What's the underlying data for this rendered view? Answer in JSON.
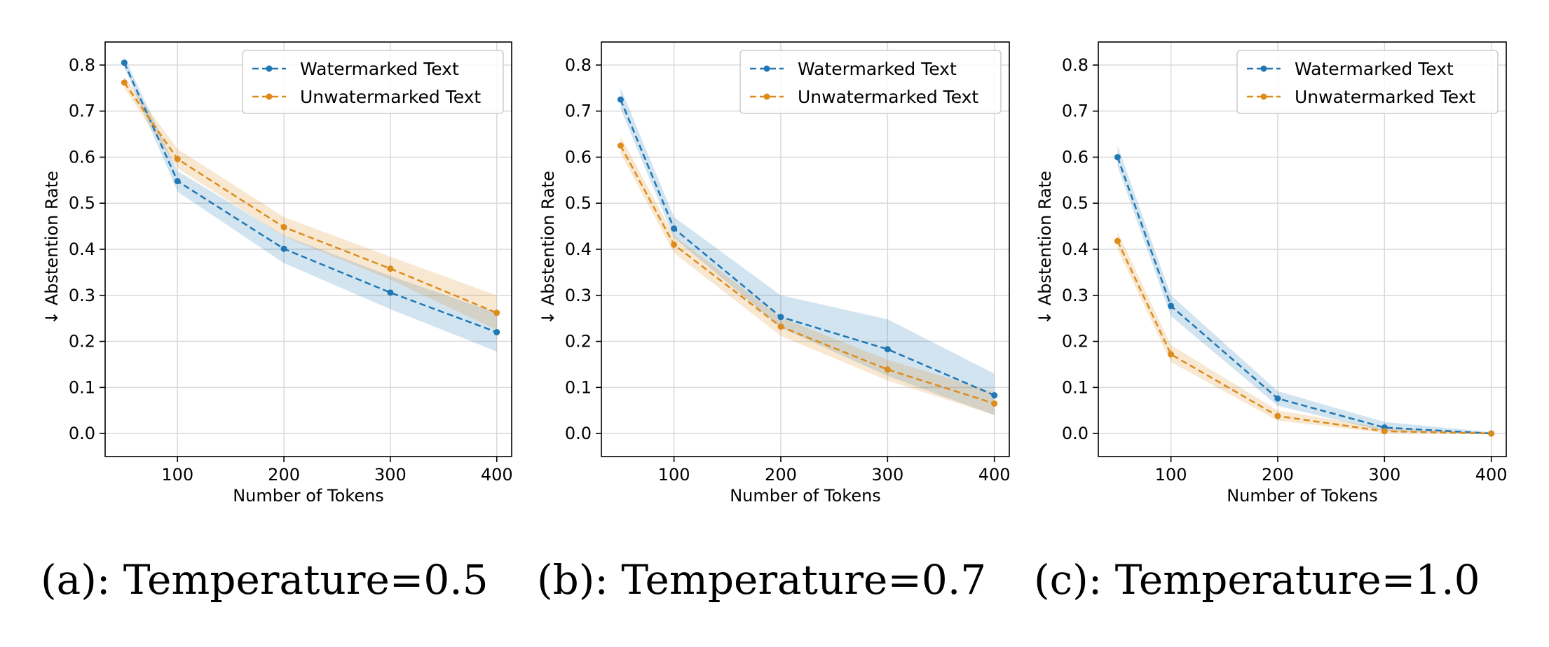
{
  "chart_data": [
    {
      "type": "line",
      "caption": "(a): Temperature=0.5",
      "xlabel": "Number of Tokens",
      "ylabel": "Abstention Rate",
      "ylabel_arrow": "↓",
      "xlim": [
        32,
        414
      ],
      "ylim": [
        -0.05,
        0.85
      ],
      "xticks": [
        100,
        200,
        300,
        400
      ],
      "yticks": [
        0.0,
        0.1,
        0.2,
        0.3,
        0.4,
        0.5,
        0.6,
        0.7,
        0.8
      ],
      "grid": true,
      "legend_position": "top-right",
      "x": [
        50,
        100,
        200,
        300,
        400
      ],
      "series": [
        {
          "name": "Watermarked Text",
          "color": "#1f77b4",
          "values": [
            0.805,
            0.548,
            0.401,
            0.306,
            0.22
          ],
          "lower": [
            0.795,
            0.525,
            0.37,
            0.27,
            0.178
          ],
          "upper": [
            0.818,
            0.57,
            0.43,
            0.342,
            0.262
          ]
        },
        {
          "name": "Unwatermarked Text",
          "color": "#dd8c1c",
          "values": [
            0.762,
            0.596,
            0.448,
            0.358,
            0.262
          ],
          "lower": [
            0.75,
            0.576,
            0.428,
            0.334,
            0.225
          ],
          "upper": [
            0.775,
            0.618,
            0.47,
            0.384,
            0.3
          ]
        }
      ]
    },
    {
      "type": "line",
      "caption": "(b): Temperature=0.7",
      "xlabel": "Number of Tokens",
      "ylabel": "Abstention Rate",
      "ylabel_arrow": "↓",
      "xlim": [
        32,
        414
      ],
      "ylim": [
        -0.05,
        0.85
      ],
      "xticks": [
        100,
        200,
        300,
        400
      ],
      "yticks": [
        0.0,
        0.1,
        0.2,
        0.3,
        0.4,
        0.5,
        0.6,
        0.7,
        0.8
      ],
      "grid": true,
      "legend_position": "top-right",
      "x": [
        50,
        100,
        200,
        300,
        400
      ],
      "series": [
        {
          "name": "Watermarked Text",
          "color": "#1f77b4",
          "values": [
            0.725,
            0.445,
            0.253,
            0.183,
            0.083
          ],
          "lower": [
            0.705,
            0.425,
            0.23,
            0.125,
            0.04
          ],
          "upper": [
            0.75,
            0.47,
            0.3,
            0.248,
            0.13
          ]
        },
        {
          "name": "Unwatermarked Text",
          "color": "#dd8c1c",
          "values": [
            0.625,
            0.41,
            0.232,
            0.139,
            0.065
          ],
          "lower": [
            0.608,
            0.392,
            0.212,
            0.115,
            0.04
          ],
          "upper": [
            0.645,
            0.43,
            0.252,
            0.16,
            0.09
          ]
        }
      ]
    },
    {
      "type": "line",
      "caption": "(c): Temperature=1.0",
      "xlabel": "Number of Tokens",
      "ylabel": "Abstention Rate",
      "ylabel_arrow": "↓",
      "xlim": [
        32,
        414
      ],
      "ylim": [
        -0.05,
        0.85
      ],
      "xticks": [
        100,
        200,
        300,
        400
      ],
      "yticks": [
        0.0,
        0.1,
        0.2,
        0.3,
        0.4,
        0.5,
        0.6,
        0.7,
        0.8
      ],
      "grid": true,
      "legend_position": "top-right",
      "x": [
        50,
        100,
        200,
        300,
        400
      ],
      "series": [
        {
          "name": "Watermarked Text",
          "color": "#1f77b4",
          "values": [
            0.6,
            0.277,
            0.076,
            0.013,
            0.0
          ],
          "lower": [
            0.58,
            0.255,
            0.06,
            0.005,
            0.0
          ],
          "upper": [
            0.625,
            0.3,
            0.092,
            0.025,
            0.003
          ]
        },
        {
          "name": "Unwatermarked Text",
          "color": "#dd8c1c",
          "values": [
            0.418,
            0.172,
            0.038,
            0.005,
            0.0
          ],
          "lower": [
            0.4,
            0.155,
            0.028,
            0.001,
            0.0
          ],
          "upper": [
            0.438,
            0.192,
            0.05,
            0.012,
            0.002
          ]
        }
      ]
    }
  ]
}
